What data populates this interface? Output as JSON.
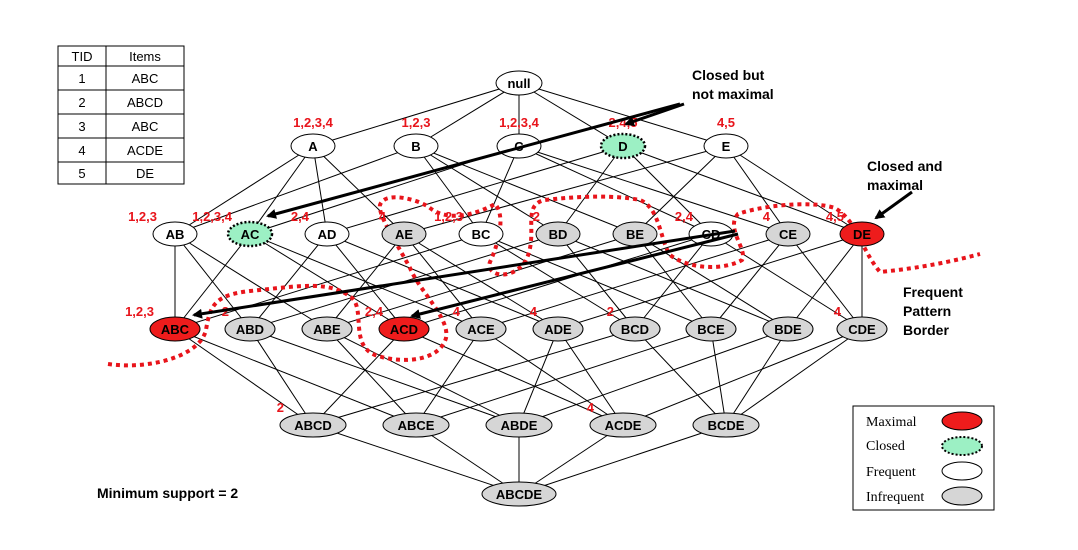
{
  "colors": {
    "maximal": "#ee1c1c",
    "closed": "#9cf0c4",
    "frequent": "#ffffff",
    "infrequent": "#d6d6d6",
    "support_text": "#e8141b",
    "border_line": "#e8141b"
  },
  "table": {
    "headers": [
      "TID",
      "Items"
    ],
    "rows": [
      [
        "1",
        "ABC"
      ],
      [
        "2",
        "ABCD"
      ],
      [
        "3",
        "ABC"
      ],
      [
        "4",
        "ACDE"
      ],
      [
        "5",
        "DE"
      ]
    ]
  },
  "lattice": {
    "root": "null",
    "levels": [
      [
        {
          "label": "A",
          "status": "frequent",
          "support": "1,2,3,4"
        },
        {
          "label": "B",
          "status": "frequent",
          "support": "1,2,3"
        },
        {
          "label": "C",
          "status": "frequent",
          "support": "1,2,3,4"
        },
        {
          "label": "D",
          "status": "closed",
          "support": "2,4,5"
        },
        {
          "label": "E",
          "status": "frequent",
          "support": "4,5"
        }
      ],
      [
        {
          "label": "AB",
          "status": "frequent",
          "support": "1,2,3"
        },
        {
          "label": "AC",
          "status": "closed",
          "support": "1,2,3,4"
        },
        {
          "label": "AD",
          "status": "frequent",
          "support": "2,4"
        },
        {
          "label": "AE",
          "status": "infrequent",
          "support": "4"
        },
        {
          "label": "BC",
          "status": "frequent",
          "support": "1,2,3"
        },
        {
          "label": "BD",
          "status": "infrequent",
          "support": "2"
        },
        {
          "label": "BE",
          "status": "infrequent",
          "support": ""
        },
        {
          "label": "CD",
          "status": "frequent",
          "support": "2,4"
        },
        {
          "label": "CE",
          "status": "infrequent",
          "support": "4"
        },
        {
          "label": "DE",
          "status": "maximal",
          "support": "4,5"
        }
      ],
      [
        {
          "label": "ABC",
          "status": "maximal",
          "support": "1,2,3"
        },
        {
          "label": "ABD",
          "status": "infrequent",
          "support": "2"
        },
        {
          "label": "ABE",
          "status": "infrequent",
          "support": ""
        },
        {
          "label": "ACD",
          "status": "maximal",
          "support": "2,4"
        },
        {
          "label": "ACE",
          "status": "infrequent",
          "support": "4"
        },
        {
          "label": "ADE",
          "status": "infrequent",
          "support": "4"
        },
        {
          "label": "BCD",
          "status": "infrequent",
          "support": "2"
        },
        {
          "label": "BCE",
          "status": "infrequent",
          "support": ""
        },
        {
          "label": "BDE",
          "status": "infrequent",
          "support": ""
        },
        {
          "label": "CDE",
          "status": "infrequent",
          "support": "4"
        }
      ],
      [
        {
          "label": "ABCD",
          "status": "infrequent",
          "support": "2"
        },
        {
          "label": "ABCE",
          "status": "infrequent",
          "support": ""
        },
        {
          "label": "ABDE",
          "status": "infrequent",
          "support": ""
        },
        {
          "label": "ACDE",
          "status": "infrequent",
          "support": "4"
        },
        {
          "label": "BCDE",
          "status": "infrequent",
          "support": ""
        }
      ],
      [
        {
          "label": "ABCDE",
          "status": "infrequent",
          "support": ""
        }
      ]
    ]
  },
  "annotations": {
    "closed_not_maximal": [
      "Closed but",
      "not maximal"
    ],
    "closed_and_maximal": [
      "Closed and",
      "maximal"
    ],
    "border": [
      "Frequent",
      "Pattern",
      "Border"
    ],
    "min_support": "Minimum support = 2"
  },
  "legend": [
    {
      "label": "Maximal",
      "status": "maximal"
    },
    {
      "label": "Closed",
      "status": "closed"
    },
    {
      "label": "Frequent",
      "status": "frequent"
    },
    {
      "label": "Infrequent",
      "status": "infrequent"
    }
  ]
}
